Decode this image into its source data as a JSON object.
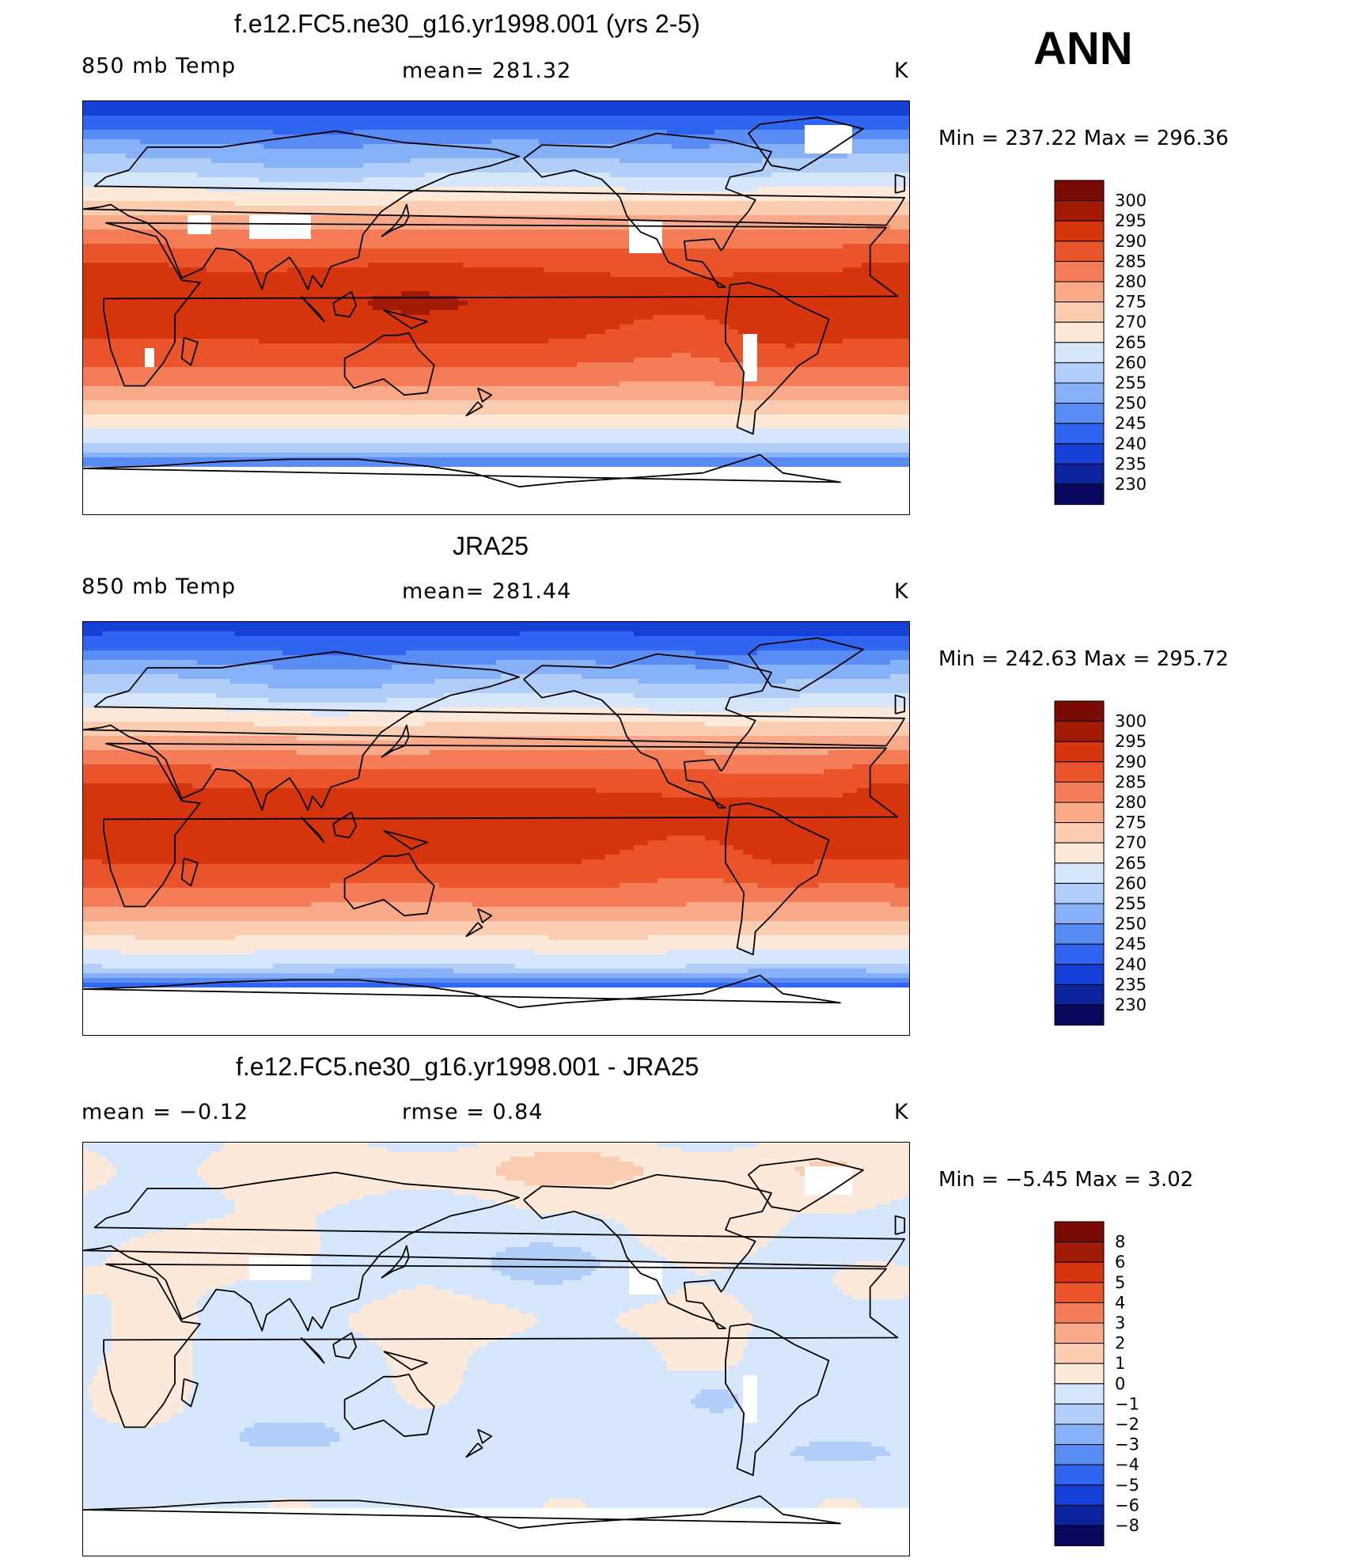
{
  "season": "ANN",
  "colors": {
    "warm_scale": [
      "#08085e",
      "#0b239c",
      "#1540d8",
      "#2f65f0",
      "#5a8cf5",
      "#86b0f7",
      "#b1cef9",
      "#d7e7fb",
      "#fde9da",
      "#fbcdb0",
      "#f8a987",
      "#f47d57",
      "#e9542a",
      "#d6340d",
      "#a11b07",
      "#7a0a04"
    ],
    "diff_scale": [
      "#08085e",
      "#0b239c",
      "#1540d8",
      "#2f65f0",
      "#5a8cf5",
      "#86b0f7",
      "#b1cef9",
      "#d7e7fb",
      "#fde9da",
      "#fbcdb0",
      "#f8a987",
      "#f47d57",
      "#e9542a",
      "#d6340d",
      "#a11b07",
      "#7a0a04"
    ],
    "missing": "#ffffff",
    "coast": "#000000"
  },
  "panels": [
    {
      "title": "f.e12.FC5.ne30_g16.yr1998.001 (yrs 2-5)",
      "left_label": "850 mb Temp",
      "mid_label": "mean= 281.32",
      "units": "K",
      "stats": "Min = 237.22 Max = 296.36",
      "levels": [
        "300",
        "295",
        "290",
        "285",
        "280",
        "275",
        "270",
        "265",
        "260",
        "255",
        "250",
        "245",
        "240",
        "235",
        "230"
      ],
      "field": "model"
    },
    {
      "title": "JRA25",
      "left_label": "850 mb Temp",
      "mid_label": "mean= 281.44",
      "units": "K",
      "stats": "Min = 242.63 Max = 295.72",
      "levels": [
        "300",
        "295",
        "290",
        "285",
        "280",
        "275",
        "270",
        "265",
        "260",
        "255",
        "250",
        "245",
        "240",
        "235",
        "230"
      ],
      "field": "obs"
    },
    {
      "title": "f.e12.FC5.ne30_g16.yr1998.001 - JRA25",
      "left_label": "mean =   −0.12",
      "mid_label": "rmse =    0.84",
      "units": "K",
      "stats": "Min =   −5.45 Max =    3.02",
      "levels": [
        "8",
        "6",
        "5",
        "4",
        "3",
        "2",
        "1",
        "0",
        "−1",
        "−2",
        "−3",
        "−4",
        "−5",
        "−6",
        "−8"
      ],
      "field": "diff"
    }
  ]
}
